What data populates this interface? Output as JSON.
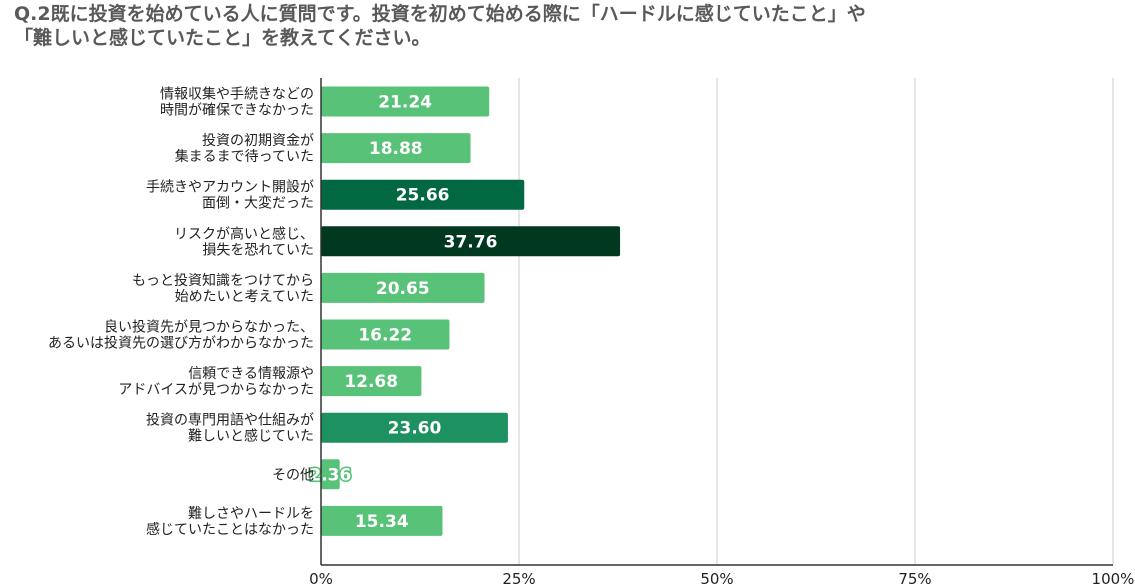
{
  "title_lines": [
    "Q.2既に投資を始めている人に質問です。投資を初めて始める際に「ハードルに感じていたこと」や",
    "「難しいと感じていたこと」を教えてください。"
  ],
  "colors": {
    "light": "#57c278",
    "medium": "#1e9160",
    "dark": "#026841",
    "darkest": "#013820",
    "grid": "#cccccc",
    "axis": "#333333"
  },
  "chart_data": {
    "type": "bar",
    "orientation": "horizontal",
    "title": "Q.2既に投資を始めている人に質問です。投資を初めて始める際に「ハードルに感じていたこと」や「難しいと感じていたこと」を教えてください。",
    "categories": [
      [
        "情報収集や手続きなどの",
        "時間が確保できなかった"
      ],
      [
        "投資の初期資金が",
        "集まるまで待っていた"
      ],
      [
        "手続きやアカウント開設が",
        "面倒・大変だった"
      ],
      [
        "リスクが高いと感じ、",
        "損失を恐れていた"
      ],
      [
        "もっと投資知識をつけてから",
        "始めたいと考えていた"
      ],
      [
        "良い投資先が見つからなかった、",
        "あるいは投資先の選び方がわからなかった"
      ],
      [
        "信頼できる情報源や",
        "アドバイスが見つからなかった"
      ],
      [
        "投資の専門用語や仕組みが",
        "難しいと感じていた"
      ],
      [
        "その他"
      ],
      [
        "難しさやハードルを",
        "感じていたことはなかった"
      ]
    ],
    "values": [
      21.24,
      18.88,
      25.66,
      37.76,
      20.65,
      16.22,
      12.68,
      23.6,
      2.36,
      15.34
    ],
    "value_labels": [
      "21.24",
      "18.88",
      "25.66",
      "37.76",
      "20.65",
      "16.22",
      "12.68",
      "23.60",
      "2.36",
      "15.34"
    ],
    "bar_colors": [
      "light",
      "light",
      "dark",
      "darkest",
      "light",
      "light",
      "light",
      "medium",
      "light",
      "light"
    ],
    "xlim": [
      0,
      100
    ],
    "xticks": [
      0,
      25,
      50,
      75,
      100
    ],
    "xtick_labels": [
      "0%",
      "25%",
      "50%",
      "75%",
      "100%"
    ],
    "grid": true,
    "xlabel": "",
    "ylabel": ""
  }
}
